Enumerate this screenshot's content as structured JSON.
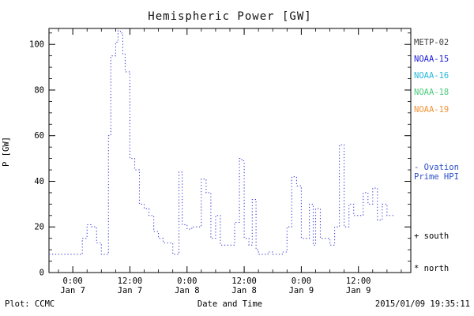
{
  "title": "Hemispheric Power [GW]",
  "footer": {
    "plot_source": "Plot: CCMC",
    "xlabel": "Date and Time",
    "timestamp": "2015/01/09 19:35:11"
  },
  "legend": {
    "satellites": [
      {
        "label": "METP-02",
        "color": "#3d3d3d"
      },
      {
        "label": "NOAA-15",
        "color": "#2323d8"
      },
      {
        "label": "NOAA-16",
        "color": "#28b8e0"
      },
      {
        "label": "NOAA-18",
        "color": "#4ecb7a"
      },
      {
        "label": "NOAA-19",
        "color": "#f09437"
      }
    ],
    "model": {
      "line1": "- Ovation",
      "line2": "Prime HPI",
      "color": "#2b4fc8"
    },
    "south_marker": {
      "label": "+ south",
      "color": "#000000"
    },
    "north_marker": {
      "label": "* north",
      "color": "#000000"
    }
  },
  "chart_data": {
    "type": "line",
    "title": "Hemispheric Power [GW]",
    "xlabel": "Date and Time",
    "ylabel": "P [GW]",
    "ylim": [
      0,
      107
    ],
    "y_ticks": [
      0,
      20,
      40,
      60,
      80,
      100
    ],
    "y_minor_step": 5,
    "x_range_hours": [
      -5,
      71
    ],
    "x_minor_step_hours": 3,
    "x_ticks": [
      {
        "t": 0,
        "time": "0:00",
        "date": "Jan 7"
      },
      {
        "t": 12,
        "time": "12:00",
        "date": "Jan 7"
      },
      {
        "t": 24,
        "time": "0:00",
        "date": "Jan 8"
      },
      {
        "t": 36,
        "time": "12:00",
        "date": "Jan 8"
      },
      {
        "t": 48,
        "time": "0:00",
        "date": "Jan 9"
      },
      {
        "t": 60,
        "time": "12:00",
        "date": "Jan 9"
      }
    ],
    "grid": false,
    "legend_position": "right",
    "series": [
      {
        "name": "Ovation Prime HPI",
        "color": "#4646d8",
        "style": "dotted",
        "step": true,
        "x_unit": "hours since 2015-01-07 00:00",
        "points": [
          [
            -5,
            8
          ],
          [
            -3,
            8
          ],
          [
            -1,
            8
          ],
          [
            0,
            8
          ],
          [
            1,
            8
          ],
          [
            2,
            15
          ],
          [
            3,
            21
          ],
          [
            4,
            20
          ],
          [
            5,
            13
          ],
          [
            6,
            8
          ],
          [
            7,
            8
          ],
          [
            7.5,
            60
          ],
          [
            8,
            95
          ],
          [
            9,
            101
          ],
          [
            9.5,
            106
          ],
          [
            10,
            105
          ],
          [
            10.5,
            96
          ],
          [
            11,
            88
          ],
          [
            12,
            50
          ],
          [
            13,
            45
          ],
          [
            14,
            30
          ],
          [
            15,
            28
          ],
          [
            16,
            25
          ],
          [
            17,
            18
          ],
          [
            18,
            15
          ],
          [
            19,
            13
          ],
          [
            20,
            13
          ],
          [
            21,
            8
          ],
          [
            22,
            8
          ],
          [
            22.3,
            44
          ],
          [
            23,
            21
          ],
          [
            24,
            19
          ],
          [
            25,
            20
          ],
          [
            26,
            20
          ],
          [
            27,
            41
          ],
          [
            28,
            35
          ],
          [
            29,
            15
          ],
          [
            30,
            25
          ],
          [
            31,
            12
          ],
          [
            32,
            12
          ],
          [
            33,
            12
          ],
          [
            34,
            22
          ],
          [
            35,
            50
          ],
          [
            35.5,
            49
          ],
          [
            36,
            15
          ],
          [
            37,
            12
          ],
          [
            37.7,
            32
          ],
          [
            38.5,
            10
          ],
          [
            39,
            8
          ],
          [
            40,
            8
          ],
          [
            41,
            9
          ],
          [
            42,
            8
          ],
          [
            43,
            8
          ],
          [
            44,
            9
          ],
          [
            45,
            20
          ],
          [
            46,
            42
          ],
          [
            47,
            38
          ],
          [
            48,
            15
          ],
          [
            49,
            15
          ],
          [
            49.7,
            30
          ],
          [
            50.5,
            12
          ],
          [
            51,
            28
          ],
          [
            52,
            15
          ],
          [
            53,
            15
          ],
          [
            54,
            12
          ],
          [
            55,
            20
          ],
          [
            56,
            56
          ],
          [
            57,
            20
          ],
          [
            58,
            30
          ],
          [
            59,
            25
          ],
          [
            60,
            25
          ],
          [
            61,
            35
          ],
          [
            62,
            30
          ],
          [
            63,
            37
          ],
          [
            64,
            23
          ],
          [
            65,
            30
          ],
          [
            66,
            25
          ],
          [
            67,
            25
          ],
          [
            67.6,
            25
          ]
        ]
      }
    ]
  }
}
